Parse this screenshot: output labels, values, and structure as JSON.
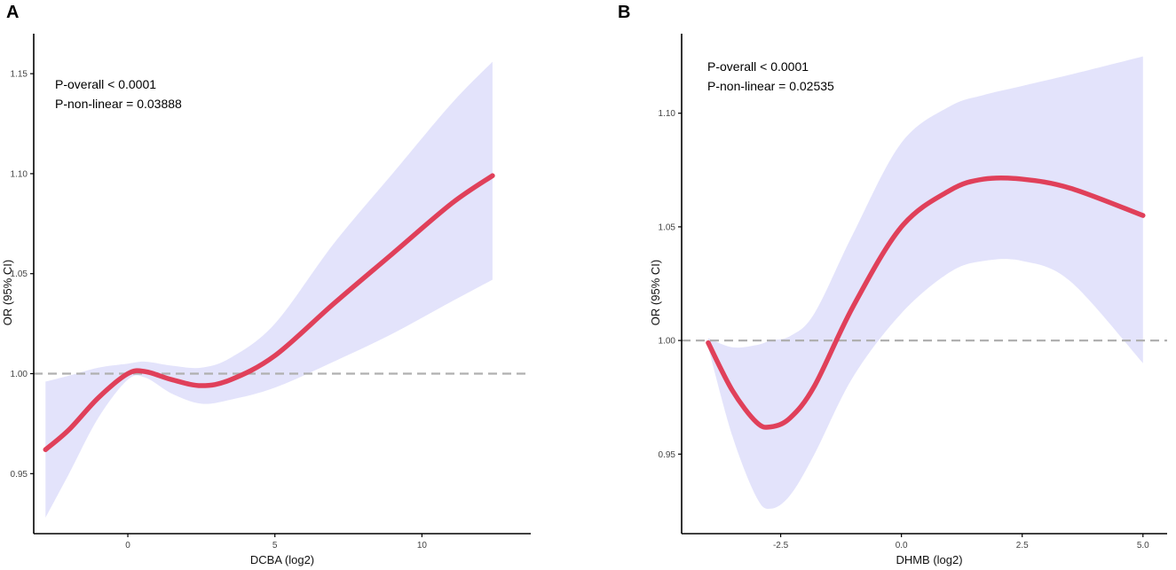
{
  "colors": {
    "line": "#e0405a",
    "band": "#e3e3fb",
    "ref": "#b0b0b0",
    "axis": "#000000"
  },
  "chart_data": [
    {
      "panel": "A",
      "type": "line",
      "xlabel": "DCBA   (log2)",
      "ylabel": "OR (95% CI)",
      "xlim": [
        -3.2,
        13.7
      ],
      "ylim": [
        0.92,
        1.17
      ],
      "xticks": [
        0,
        5,
        10
      ],
      "xtick_labels": [
        "0",
        "5",
        "10"
      ],
      "yticks": [
        0.95,
        1.0,
        1.05,
        1.1,
        1.15
      ],
      "ytick_labels": [
        "0.95",
        "1.00",
        "1.05",
        "1.10",
        "1.15"
      ],
      "reference_line": 1.0,
      "annotations": [
        "P-overall < 0.0001",
        "P-non-linear = 0.03888"
      ],
      "series": [
        {
          "name": "OR",
          "x": [
            -2.8,
            -2.0,
            -1.0,
            0.0,
            0.6,
            1.5,
            2.5,
            3.5,
            5.0,
            7.0,
            9.0,
            11.0,
            12.4
          ],
          "y": [
            0.962,
            0.972,
            0.988,
            1.0,
            1.001,
            0.997,
            0.994,
            0.997,
            1.009,
            1.035,
            1.06,
            1.085,
            1.099
          ],
          "lower": [
            0.928,
            0.95,
            0.978,
            0.997,
            0.998,
            0.99,
            0.985,
            0.987,
            0.993,
            1.006,
            1.02,
            1.036,
            1.047
          ],
          "upper": [
            0.996,
            0.999,
            1.003,
            1.005,
            1.006,
            1.004,
            1.003,
            1.008,
            1.025,
            1.065,
            1.1,
            1.135,
            1.156
          ]
        }
      ]
    },
    {
      "panel": "B",
      "type": "line",
      "xlabel": "DHMB    (log2)",
      "ylabel": "OR (95% CI)",
      "xlim": [
        -4.55,
        5.5
      ],
      "ylim": [
        0.915,
        1.135
      ],
      "xticks": [
        -2.5,
        0.0,
        2.5,
        5.0
      ],
      "xtick_labels": [
        "-2.5",
        "0.0",
        "2.5",
        "5.0"
      ],
      "yticks": [
        0.95,
        1.0,
        1.05,
        1.1
      ],
      "ytick_labels": [
        "0.95",
        "1.00",
        "1.05",
        "1.10"
      ],
      "reference_line": 1.0,
      "annotations": [
        "P-overall < 0.0001",
        "P-non-linear = 0.02535"
      ],
      "series": [
        {
          "name": "OR",
          "x": [
            -4.0,
            -3.5,
            -3.0,
            -2.7,
            -2.3,
            -1.8,
            -1.0,
            0.0,
            1.0,
            1.7,
            2.5,
            3.5,
            5.0
          ],
          "y": [
            0.999,
            0.978,
            0.964,
            0.962,
            0.966,
            0.98,
            1.015,
            1.05,
            1.066,
            1.071,
            1.071,
            1.067,
            1.055
          ],
          "lower": [
            0.997,
            0.958,
            0.931,
            0.926,
            0.932,
            0.95,
            0.984,
            1.012,
            1.03,
            1.035,
            1.035,
            1.026,
            0.99
          ],
          "upper": [
            1.001,
            0.997,
            0.998,
            1.0,
            1.002,
            1.012,
            1.047,
            1.087,
            1.103,
            1.108,
            1.112,
            1.117,
            1.125
          ]
        }
      ]
    }
  ]
}
